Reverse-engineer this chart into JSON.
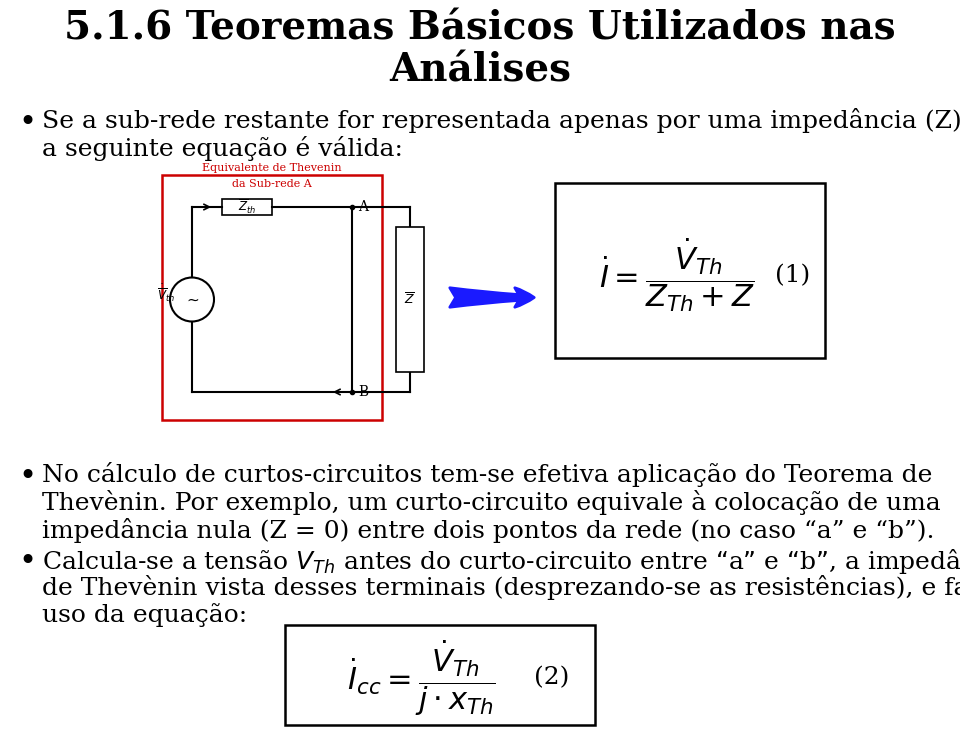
{
  "title_line1": "5.1.6 Teoremas Básicos Utilizados nas",
  "title_line2": "Análises",
  "title_fontsize": 28,
  "title_color": "#000000",
  "bg_color": "#ffffff",
  "bullet1_line1": "Se a sub-rede restante for representada apenas por uma impedância (Z), então",
  "bullet1_line2": "a seguinte equação é válida:",
  "bullet2_line1": "No cálculo de curtos-circuitos tem-se efetiva aplicação do Teorema de",
  "bullet2_line2": "Thevènin. Por exemplo, um curto-circuito equivale à colocação de uma",
  "bullet2_line3": "impedância nula (Z = 0) entre dois pontos da rede (no caso “a” e “b”).",
  "bullet3_line1": "Calcula-se a tensão $V_{Th}$ antes do curto-circuito entre “a” e “b”, a impedância",
  "bullet3_line2": "de Thevènin vista desses terminais (desprezando-se as resistências), e faz-se",
  "bullet3_line3": "uso da equação:",
  "text_fontsize": 18,
  "text_color": "#000000",
  "eq1_label": "(1)",
  "eq2_label": "(2)",
  "circuit_label_red1": "Equivalente de Thevenin",
  "circuit_label_red2": "da Sub-rede A",
  "red_color": "#cc0000",
  "blue_color": "#1a1aff"
}
